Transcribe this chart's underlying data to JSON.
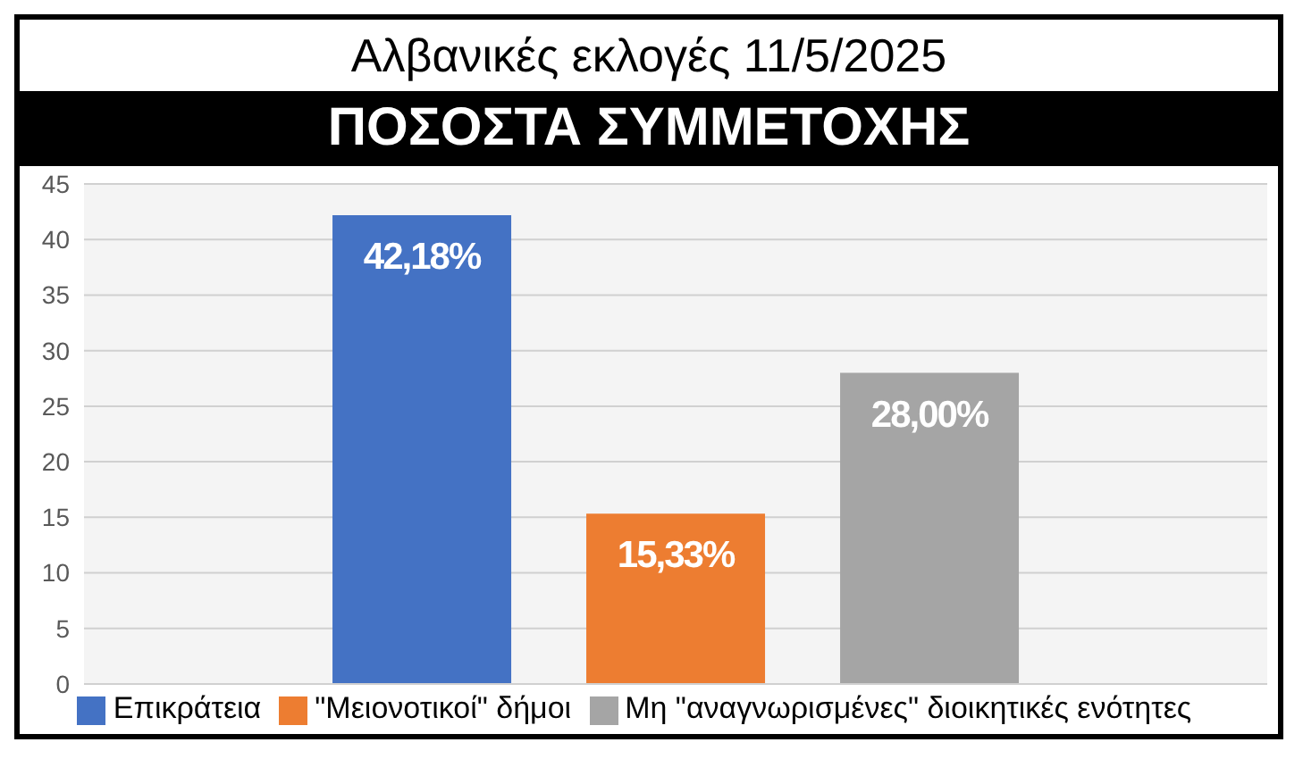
{
  "chart_data": {
    "type": "bar",
    "title": "Αλβανικές εκλογές 11/5/2025",
    "subtitle": "ΠΟΣΟΣΤΑ ΣΥΜΜΕΤΟΧΗΣ",
    "categories": [
      null
    ],
    "series": [
      {
        "name": "Επικράτεια",
        "color": "#4472c4",
        "values": [
          42.18
        ],
        "value_labels": [
          "42,18%"
        ]
      },
      {
        "name": "\"Μειονοτικοί\" δήμοι",
        "color": "#ed7d31",
        "values": [
          15.33
        ],
        "value_labels": [
          "15,33%"
        ]
      },
      {
        "name": "Μη \"αναγνωρισμένες\" διοικητικές ενότητες",
        "color": "#a5a5a5",
        "values": [
          28.0
        ],
        "value_labels": [
          "28,00%"
        ]
      }
    ],
    "ylim": [
      0,
      45
    ],
    "yticks": [
      0,
      5,
      10,
      15,
      20,
      25,
      30,
      35,
      40,
      45
    ],
    "grid": "y",
    "legend": "bottom"
  }
}
